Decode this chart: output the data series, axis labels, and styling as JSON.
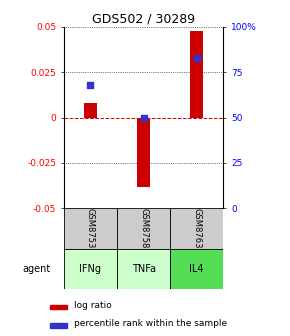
{
  "title": "GDS502 / 30289",
  "samples": [
    "GSM8753",
    "GSM8758",
    "GSM8763"
  ],
  "agents": [
    "IFNg",
    "TNFa",
    "IL4"
  ],
  "log_ratios": [
    0.008,
    -0.038,
    0.048
  ],
  "percentile_ranks": [
    68,
    50,
    83
  ],
  "ylim_left": [
    -0.05,
    0.05
  ],
  "ylim_right": [
    0,
    100
  ],
  "yticks_left": [
    -0.05,
    -0.025,
    0,
    0.025,
    0.05
  ],
  "yticks_right": [
    0,
    25,
    50,
    75,
    100
  ],
  "ytick_labels_right": [
    "0",
    "25",
    "50",
    "75",
    "100%"
  ],
  "ytick_labels_left": [
    "-0.05",
    "-0.025",
    "0",
    "0.025",
    "0.05"
  ],
  "bar_color": "#cc0000",
  "dot_color": "#3333cc",
  "zero_line_color": "#cc0000",
  "sample_bg_color": "#cccccc",
  "agent_colors": [
    "#ccffcc",
    "#ccffcc",
    "#55dd55"
  ],
  "title_fontsize": 9,
  "tick_fontsize": 6.5,
  "legend_fontsize": 6.5
}
